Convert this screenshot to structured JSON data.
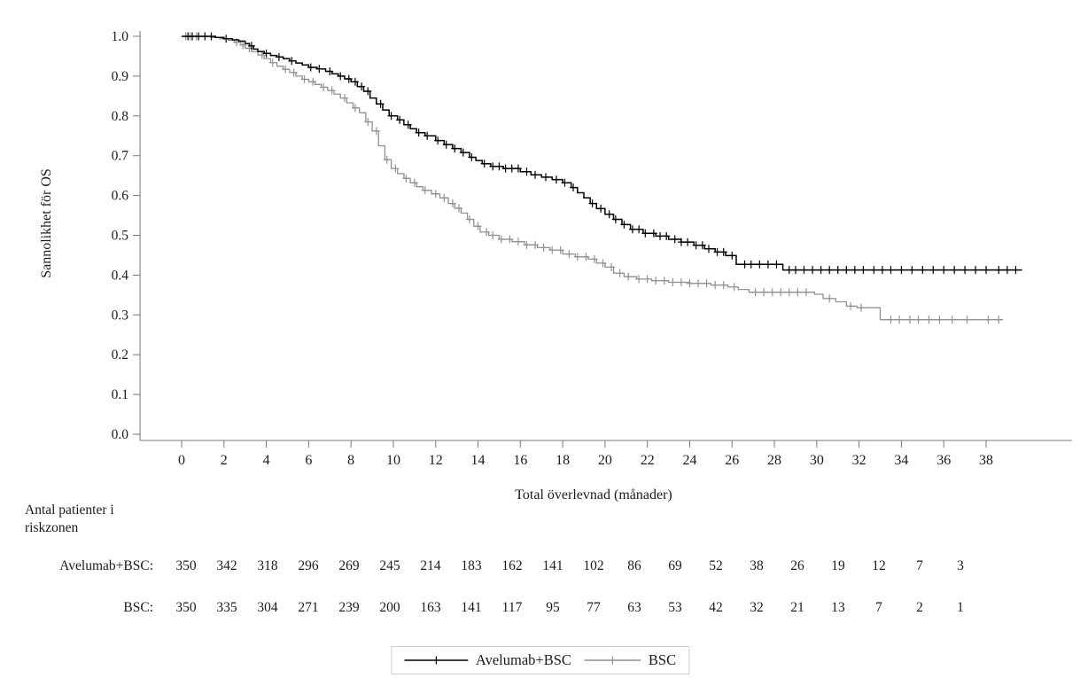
{
  "chart_data": {
    "type": "line",
    "subtype": "kaplan-meier-step",
    "title": "",
    "xlabel": "Total överlevnad (månader)",
    "ylabel": "Sannolikhet för OS",
    "xlim": [
      0,
      40
    ],
    "ylim": [
      0.0,
      1.0
    ],
    "grid": false,
    "legend_position": "bottom-center",
    "x_ticks": [
      0,
      2,
      4,
      6,
      8,
      10,
      12,
      14,
      16,
      18,
      20,
      22,
      24,
      26,
      28,
      30,
      32,
      34,
      36,
      38
    ],
    "y_ticks": [
      "0.0",
      "0.1",
      "0.2",
      "0.3",
      "0.4",
      "0.5",
      "0.6",
      "0.7",
      "0.8",
      "0.9",
      "1.0"
    ],
    "series": [
      {
        "name": "BSC",
        "color": "#919191",
        "step_points": [
          [
            0,
            1.0
          ],
          [
            1.4,
            0.997
          ],
          [
            1.8,
            0.994
          ],
          [
            2.2,
            0.99
          ],
          [
            2.5,
            0.985
          ],
          [
            2.8,
            0.978
          ],
          [
            3.0,
            0.97
          ],
          [
            3.3,
            0.962
          ],
          [
            3.6,
            0.953
          ],
          [
            3.9,
            0.944
          ],
          [
            4.2,
            0.934
          ],
          [
            4.5,
            0.925
          ],
          [
            4.8,
            0.917
          ],
          [
            5.1,
            0.909
          ],
          [
            5.4,
            0.9
          ],
          [
            5.7,
            0.892
          ],
          [
            6.0,
            0.886
          ],
          [
            6.3,
            0.879
          ],
          [
            6.6,
            0.872
          ],
          [
            6.9,
            0.864
          ],
          [
            7.2,
            0.855
          ],
          [
            7.5,
            0.845
          ],
          [
            7.8,
            0.833
          ],
          [
            8.1,
            0.82
          ],
          [
            8.4,
            0.808
          ],
          [
            8.7,
            0.785
          ],
          [
            9.0,
            0.762
          ],
          [
            9.3,
            0.725
          ],
          [
            9.6,
            0.69
          ],
          [
            9.9,
            0.668
          ],
          [
            10.2,
            0.655
          ],
          [
            10.5,
            0.643
          ],
          [
            10.8,
            0.632
          ],
          [
            11.1,
            0.622
          ],
          [
            11.4,
            0.613
          ],
          [
            11.8,
            0.604
          ],
          [
            12.2,
            0.594
          ],
          [
            12.6,
            0.58
          ],
          [
            12.9,
            0.568
          ],
          [
            13.2,
            0.556
          ],
          [
            13.5,
            0.54
          ],
          [
            13.8,
            0.523
          ],
          [
            14.1,
            0.508
          ],
          [
            14.5,
            0.5
          ],
          [
            15.0,
            0.49
          ],
          [
            15.6,
            0.484
          ],
          [
            16.2,
            0.476
          ],
          [
            16.8,
            0.469
          ],
          [
            17.4,
            0.463
          ],
          [
            18.0,
            0.453
          ],
          [
            18.6,
            0.446
          ],
          [
            19.2,
            0.44
          ],
          [
            19.6,
            0.43
          ],
          [
            20.0,
            0.42
          ],
          [
            20.4,
            0.405
          ],
          [
            20.9,
            0.396
          ],
          [
            21.5,
            0.39
          ],
          [
            22.2,
            0.386
          ],
          [
            23.0,
            0.382
          ],
          [
            24.0,
            0.379
          ],
          [
            25.0,
            0.375
          ],
          [
            25.8,
            0.37
          ],
          [
            26.3,
            0.364
          ],
          [
            26.8,
            0.357
          ],
          [
            29.9,
            0.352
          ],
          [
            30.3,
            0.341
          ],
          [
            30.9,
            0.333
          ],
          [
            31.4,
            0.322
          ],
          [
            31.9,
            0.318
          ],
          [
            33.0,
            0.288
          ],
          [
            38.8,
            0.288
          ]
        ],
        "censor_times": [
          0.2,
          0.4,
          0.7,
          2.6,
          2.9,
          3.2,
          3.8,
          4.3,
          4.9,
          5.3,
          5.8,
          6.2,
          6.7,
          7.1,
          7.7,
          8.2,
          8.8,
          9.2,
          9.7,
          10.1,
          10.6,
          11.0,
          11.5,
          12.0,
          12.4,
          12.8,
          13.1,
          13.6,
          14.0,
          14.4,
          14.7,
          15.1,
          15.5,
          15.9,
          16.3,
          16.7,
          17.1,
          17.5,
          17.9,
          18.3,
          18.7,
          19.1,
          19.5,
          19.9,
          20.3,
          20.7,
          21.1,
          21.6,
          22.0,
          22.4,
          22.8,
          23.2,
          23.6,
          24.0,
          24.4,
          24.8,
          25.2,
          25.6,
          26.1,
          27.1,
          27.5,
          27.9,
          28.3,
          28.7,
          29.1,
          29.5,
          30.6,
          31.6,
          32.1,
          33.5,
          33.9,
          34.4,
          34.8,
          35.3,
          35.8,
          36.4,
          37.1,
          38.1,
          38.6
        ]
      },
      {
        "name": "Avelumab+BSC",
        "color": "#000000",
        "step_points": [
          [
            0,
            1.0
          ],
          [
            1.6,
            0.997
          ],
          [
            2.0,
            0.994
          ],
          [
            2.4,
            0.991
          ],
          [
            2.7,
            0.988
          ],
          [
            3.0,
            0.982
          ],
          [
            3.2,
            0.976
          ],
          [
            3.4,
            0.968
          ],
          [
            3.6,
            0.962
          ],
          [
            3.9,
            0.957
          ],
          [
            4.2,
            0.952
          ],
          [
            4.5,
            0.948
          ],
          [
            4.8,
            0.944
          ],
          [
            5.1,
            0.938
          ],
          [
            5.4,
            0.933
          ],
          [
            5.7,
            0.928
          ],
          [
            6.0,
            0.922
          ],
          [
            6.4,
            0.918
          ],
          [
            6.8,
            0.912
          ],
          [
            7.1,
            0.906
          ],
          [
            7.4,
            0.9
          ],
          [
            7.7,
            0.893
          ],
          [
            8.0,
            0.886
          ],
          [
            8.3,
            0.874
          ],
          [
            8.6,
            0.862
          ],
          [
            8.9,
            0.845
          ],
          [
            9.2,
            0.83
          ],
          [
            9.5,
            0.815
          ],
          [
            9.8,
            0.8
          ],
          [
            10.2,
            0.79
          ],
          [
            10.5,
            0.778
          ],
          [
            10.8,
            0.768
          ],
          [
            11.1,
            0.758
          ],
          [
            11.5,
            0.75
          ],
          [
            12.0,
            0.738
          ],
          [
            12.4,
            0.728
          ],
          [
            12.8,
            0.718
          ],
          [
            13.2,
            0.708
          ],
          [
            13.6,
            0.696
          ],
          [
            13.9,
            0.688
          ],
          [
            14.2,
            0.68
          ],
          [
            14.6,
            0.673
          ],
          [
            15.2,
            0.668
          ],
          [
            16.0,
            0.66
          ],
          [
            16.5,
            0.652
          ],
          [
            17.0,
            0.646
          ],
          [
            17.5,
            0.64
          ],
          [
            18.0,
            0.632
          ],
          [
            18.4,
            0.62
          ],
          [
            18.7,
            0.607
          ],
          [
            19.0,
            0.594
          ],
          [
            19.3,
            0.58
          ],
          [
            19.6,
            0.567
          ],
          [
            20.0,
            0.553
          ],
          [
            20.4,
            0.54
          ],
          [
            20.8,
            0.527
          ],
          [
            21.2,
            0.515
          ],
          [
            21.8,
            0.505
          ],
          [
            22.4,
            0.498
          ],
          [
            23.0,
            0.49
          ],
          [
            23.6,
            0.483
          ],
          [
            24.2,
            0.475
          ],
          [
            24.7,
            0.466
          ],
          [
            25.2,
            0.458
          ],
          [
            25.7,
            0.449
          ],
          [
            26.2,
            0.427
          ],
          [
            28.4,
            0.413
          ],
          [
            39.7,
            0.413
          ]
        ],
        "censor_times": [
          0.3,
          0.5,
          0.8,
          1.1,
          1.4,
          2.1,
          3.3,
          4.0,
          4.6,
          5.2,
          6.1,
          6.5,
          7.0,
          7.5,
          7.9,
          8.2,
          8.5,
          8.8,
          9.4,
          9.9,
          10.3,
          10.7,
          11.2,
          11.6,
          12.1,
          12.5,
          12.9,
          13.3,
          13.7,
          14.3,
          14.7,
          15.0,
          15.3,
          15.6,
          15.9,
          16.3,
          16.7,
          17.2,
          17.7,
          18.1,
          18.5,
          19.4,
          19.8,
          20.2,
          20.5,
          20.9,
          21.3,
          21.6,
          21.9,
          22.3,
          22.6,
          22.9,
          23.3,
          23.6,
          23.9,
          24.3,
          24.6,
          24.9,
          25.3,
          25.6,
          26.0,
          26.6,
          26.9,
          27.3,
          27.7,
          28.1,
          28.7,
          29.0,
          29.4,
          29.8,
          30.2,
          30.6,
          31.0,
          31.4,
          31.8,
          32.2,
          32.7,
          33.1,
          33.5,
          34.0,
          34.5,
          35.0,
          35.5,
          36.0,
          36.5,
          37.0,
          37.5,
          38.0,
          38.6,
          39.0,
          39.4
        ]
      }
    ]
  },
  "risk_table": {
    "header_line1": "Antal patienter i",
    "header_line2": "riskzonen",
    "times": [
      0,
      2,
      4,
      6,
      8,
      10,
      12,
      14,
      16,
      18,
      20,
      22,
      24,
      26,
      28,
      30,
      32,
      34,
      36,
      38
    ],
    "rows": [
      {
        "label": "Avelumab+BSC:",
        "counts": [
          350,
          342,
          318,
          296,
          269,
          245,
          214,
          183,
          162,
          141,
          102,
          86,
          69,
          52,
          38,
          26,
          19,
          12,
          7,
          3
        ]
      },
      {
        "label": "BSC:",
        "counts": [
          350,
          335,
          304,
          271,
          239,
          200,
          163,
          141,
          117,
          95,
          77,
          63,
          53,
          42,
          32,
          21,
          13,
          7,
          2,
          1
        ]
      }
    ]
  },
  "legend": {
    "entries": [
      {
        "label": "Avelumab+BSC",
        "color": "#000000"
      },
      {
        "label": "BSC",
        "color": "#919191"
      }
    ]
  }
}
